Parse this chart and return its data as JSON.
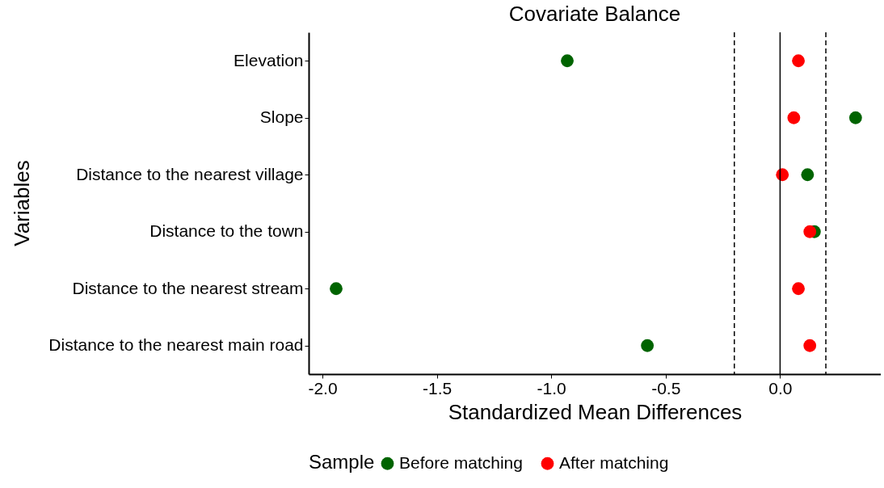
{
  "chart_data": {
    "type": "scatter",
    "orientation": "horizontal",
    "title": "Covariate Balance",
    "xlabel": "Standardized Mean Differences",
    "ylabel": "Variables",
    "legend_title": "Sample",
    "categories": [
      "Elevation",
      "Slope",
      "Distance to the nearest village",
      "Distance to the town",
      "Distance to the nearest stream",
      "Distance to the nearest main road"
    ],
    "series": [
      {
        "name": "Before matching",
        "color": "#006400",
        "values": [
          -0.93,
          0.33,
          0.12,
          0.15,
          -1.94,
          -0.58
        ]
      },
      {
        "name": "After matching",
        "color": "#ff0000",
        "values": [
          0.08,
          0.06,
          0.01,
          0.13,
          0.08,
          0.13
        ]
      }
    ],
    "xlim": [
      -2.06,
      0.44
    ],
    "xticks": [
      {
        "value": -2,
        "label": "-2.0"
      },
      {
        "value": -1.5,
        "label": "-1.5"
      },
      {
        "value": -1,
        "label": "-1.0"
      },
      {
        "value": -0.5,
        "label": "-0.5"
      },
      {
        "value": 0,
        "label": "0.0"
      }
    ],
    "ref_lines": [
      {
        "axis": "x",
        "value": -0.2,
        "color": "#000000",
        "line_style": "dashed"
      },
      {
        "axis": "x",
        "value": 0,
        "color": "#000000",
        "line_style": "solid"
      },
      {
        "axis": "x",
        "value": 0.2,
        "color": "#000000",
        "line_style": "dashed"
      }
    ],
    "legend": "bottom",
    "marker": "circle",
    "grid": false
  }
}
